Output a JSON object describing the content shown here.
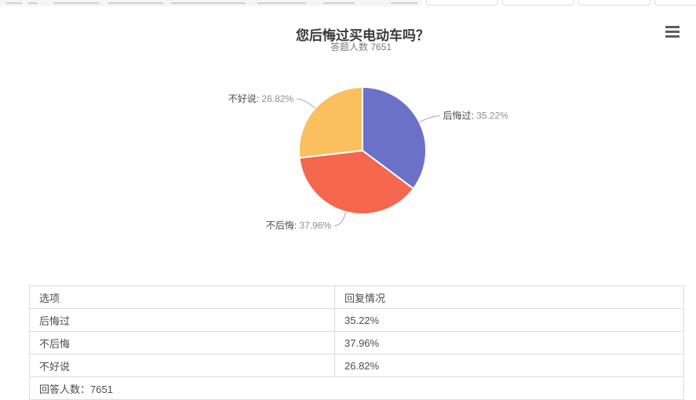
{
  "page": {
    "title": "您后悔过买电动车吗？",
    "subtitle": "答题人数 7651"
  },
  "icons": {
    "toolbox_menu": "hamburger-icon"
  },
  "chart_data": {
    "type": "pie",
    "title": "您后悔过买电动车吗？",
    "subtitle": "答题人数 7651",
    "legend": "none",
    "start_angle_deg": -90,
    "label_format": "{name}: {value}%",
    "label_line_color": "#a6a6a6",
    "slices": [
      {
        "name": "后悔过",
        "value": 35.22,
        "color": "#6B71C6"
      },
      {
        "name": "不后悔",
        "value": 37.96,
        "color": "#F4664D"
      },
      {
        "name": "不好说",
        "value": 26.82,
        "color": "#FAC05E"
      }
    ]
  },
  "table": {
    "headers": [
      "选项",
      "回复情况"
    ],
    "rows": [
      {
        "option": "后悔过",
        "response": "35.22%"
      },
      {
        "option": "不后悔",
        "response": "37.96%"
      },
      {
        "option": "不好说",
        "response": "26.82%"
      }
    ],
    "footer": "回答人数：7651"
  },
  "colors": {
    "slice_blue": "#6B71C6",
    "slice_red": "#F4664D",
    "slice_orange": "#FAC05E",
    "table_border": "#dcdcdc",
    "title_text": "#3a3a3a",
    "subtitle_text": "#7a7a7a",
    "label_name_text": "#4d4d4d",
    "label_value_text": "#8f8f8f"
  }
}
